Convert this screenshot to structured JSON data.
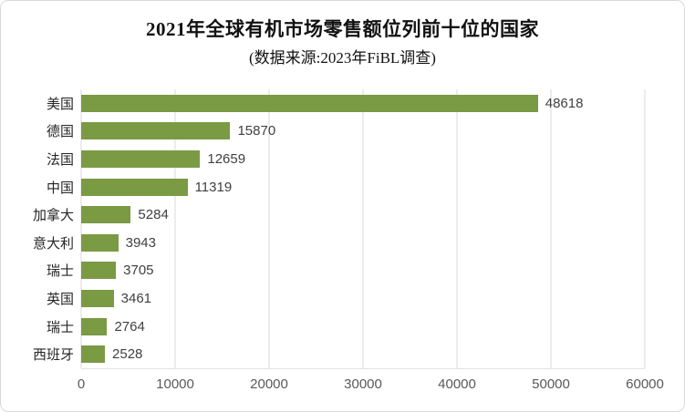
{
  "chart": {
    "bar_color": "#7a9a44",
    "gridline_color": "#d9d9d9",
    "tick_label_color": "#595959",
    "value_label_color": "#404040",
    "category_label_color": "#262626",
    "frame_border_color": "#d9d9d9"
  },
  "chart_data": {
    "type": "bar",
    "orientation": "horizontal",
    "title": "2021年全球有机市场零售额位列前十位的国家",
    "subtitle": "(数据来源:2023年FiBL调查)",
    "categories": [
      "美国",
      "德国",
      "法国",
      "中国",
      "加拿大",
      "意大利",
      "瑞士",
      "英国",
      "瑞士",
      "西班牙"
    ],
    "values": [
      48618,
      15870,
      12659,
      11319,
      5284,
      3943,
      3705,
      3461,
      2764,
      2528
    ],
    "data_labels": [
      "48618",
      "15870",
      "12659",
      "11319",
      "5284",
      "3943",
      "3705",
      "3461",
      "2764",
      "2528"
    ],
    "xlabel": "",
    "ylabel": "",
    "xlim": [
      0,
      60000
    ],
    "xticks": [
      0,
      10000,
      20000,
      30000,
      40000,
      50000,
      60000
    ],
    "xtick_labels": [
      "0",
      "10000",
      "20000",
      "30000",
      "40000",
      "50000",
      "60000"
    ],
    "grid": "vertical",
    "legend": false
  }
}
